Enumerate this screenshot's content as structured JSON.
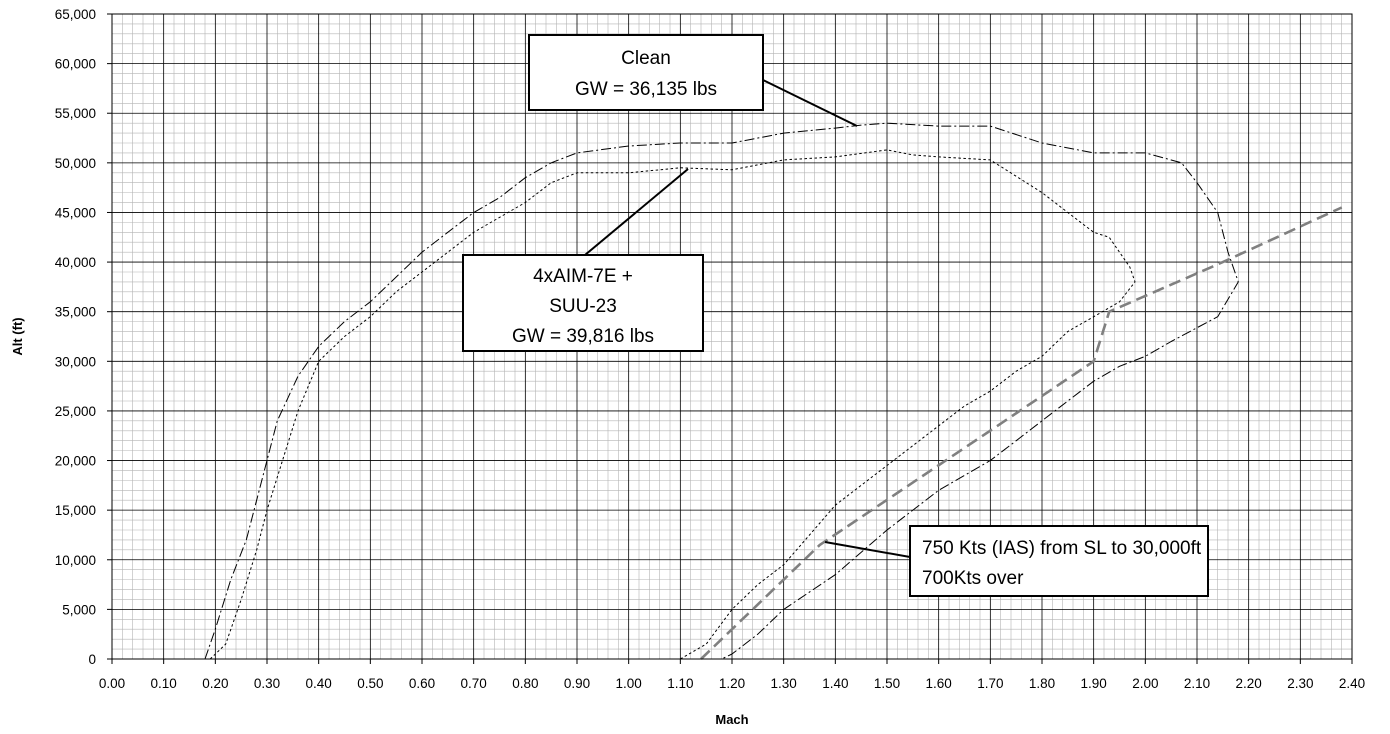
{
  "chart_data": {
    "type": "line",
    "title": "",
    "xlabel": "Mach",
    "ylabel": "Alt (ft)",
    "xlim": [
      0,
      2.4
    ],
    "ylim": [
      0,
      65000
    ],
    "x_ticks": [
      "0.00",
      "0.10",
      "0.20",
      "0.30",
      "0.40",
      "0.50",
      "0.60",
      "0.70",
      "0.80",
      "0.90",
      "1.00",
      "1.10",
      "1.20",
      "1.30",
      "1.40",
      "1.50",
      "1.60",
      "1.70",
      "1.80",
      "1.90",
      "2.00",
      "2.10",
      "2.20",
      "2.30",
      "2.40"
    ],
    "y_ticks": [
      "0",
      "5,000",
      "10,000",
      "15,000",
      "20,000",
      "25,000",
      "30,000",
      "35,000",
      "40,000",
      "45,000",
      "50,000",
      "55,000",
      "60,000",
      "65,000"
    ],
    "grid": "major and minor",
    "legend": "none",
    "series": [
      {
        "style": "dash-dot",
        "color": "#000000",
        "points": [
          [
            0.18,
            0
          ],
          [
            0.2,
            3000
          ],
          [
            0.23,
            8000
          ],
          [
            0.26,
            12000
          ],
          [
            0.29,
            18000
          ],
          [
            0.32,
            24000
          ],
          [
            0.36,
            28500
          ],
          [
            0.4,
            31500
          ],
          [
            0.45,
            34000
          ],
          [
            0.5,
            36000
          ],
          [
            0.55,
            38500
          ],
          [
            0.6,
            41000
          ],
          [
            0.65,
            43000
          ],
          [
            0.7,
            45000
          ],
          [
            0.75,
            46500
          ],
          [
            0.8,
            48500
          ],
          [
            0.85,
            50000
          ],
          [
            0.9,
            51000
          ],
          [
            1.0,
            51700
          ],
          [
            1.1,
            52000
          ],
          [
            1.2,
            52000
          ],
          [
            1.3,
            53000
          ],
          [
            1.4,
            53500
          ],
          [
            1.45,
            53800
          ],
          [
            1.5,
            54000
          ],
          [
            1.6,
            53700
          ],
          [
            1.7,
            53700
          ],
          [
            1.8,
            52000
          ],
          [
            1.9,
            51000
          ],
          [
            2.0,
            51000
          ],
          [
            2.07,
            50000
          ],
          [
            2.1,
            48000
          ],
          [
            2.14,
            45000
          ],
          [
            2.16,
            41000
          ],
          [
            2.18,
            38000
          ],
          [
            2.14,
            34500
          ],
          [
            2.05,
            32000
          ],
          [
            2.0,
            30500
          ],
          [
            1.95,
            29500
          ],
          [
            1.9,
            28000
          ],
          [
            1.85,
            26000
          ],
          [
            1.8,
            24000
          ],
          [
            1.75,
            22000
          ],
          [
            1.7,
            20000
          ],
          [
            1.6,
            17000
          ],
          [
            1.5,
            13000
          ],
          [
            1.4,
            8500
          ],
          [
            1.3,
            5000
          ],
          [
            1.25,
            2500
          ],
          [
            1.2,
            500
          ],
          [
            1.18,
            0
          ]
        ]
      },
      {
        "style": "dotted",
        "color": "#000000",
        "points": [
          [
            0.19,
            0
          ],
          [
            0.22,
            1500
          ],
          [
            0.25,
            6000
          ],
          [
            0.28,
            11000
          ],
          [
            0.3,
            15000
          ],
          [
            0.33,
            20000
          ],
          [
            0.36,
            25000
          ],
          [
            0.4,
            30000
          ],
          [
            0.45,
            32500
          ],
          [
            0.5,
            34500
          ],
          [
            0.55,
            37000
          ],
          [
            0.6,
            39000
          ],
          [
            0.65,
            41000
          ],
          [
            0.7,
            43000
          ],
          [
            0.75,
            44500
          ],
          [
            0.8,
            46000
          ],
          [
            0.85,
            48000
          ],
          [
            0.9,
            49000
          ],
          [
            1.0,
            49000
          ],
          [
            1.1,
            49500
          ],
          [
            1.2,
            49300
          ],
          [
            1.3,
            50300
          ],
          [
            1.4,
            50600
          ],
          [
            1.5,
            51300
          ],
          [
            1.55,
            50800
          ],
          [
            1.6,
            50600
          ],
          [
            1.7,
            50300
          ],
          [
            1.8,
            47000
          ],
          [
            1.85,
            45000
          ],
          [
            1.9,
            43000
          ],
          [
            1.93,
            42500
          ],
          [
            1.95,
            41000
          ],
          [
            1.97,
            39500
          ],
          [
            1.98,
            38000
          ],
          [
            1.95,
            36000
          ],
          [
            1.9,
            34500
          ],
          [
            1.85,
            33000
          ],
          [
            1.8,
            30500
          ],
          [
            1.75,
            29000
          ],
          [
            1.7,
            27000
          ],
          [
            1.65,
            25500
          ],
          [
            1.6,
            23500
          ],
          [
            1.55,
            21500
          ],
          [
            1.5,
            19500
          ],
          [
            1.45,
            17500
          ],
          [
            1.4,
            15500
          ],
          [
            1.35,
            12500
          ],
          [
            1.3,
            9500
          ],
          [
            1.25,
            7500
          ],
          [
            1.2,
            5000
          ],
          [
            1.15,
            1500
          ],
          [
            1.1,
            0
          ]
        ]
      },
      {
        "style": "long-dash",
        "color": "#808080",
        "points": [
          [
            1.14,
            0
          ],
          [
            1.37,
            11500
          ],
          [
            1.9,
            30000
          ],
          [
            1.93,
            35000
          ],
          [
            2.15,
            40000
          ],
          [
            2.38,
            45500
          ]
        ]
      }
    ],
    "annotations": [
      {
        "lines": [
          "Clean",
          "GW = 36,135 lbs"
        ]
      },
      {
        "lines": [
          "4xAIM-7E +",
          "SUU-23",
          "GW = 39,816 lbs"
        ]
      },
      {
        "lines": [
          "750 Kts (IAS) from SL to 30,000ft",
          "700Kts over"
        ]
      }
    ]
  }
}
